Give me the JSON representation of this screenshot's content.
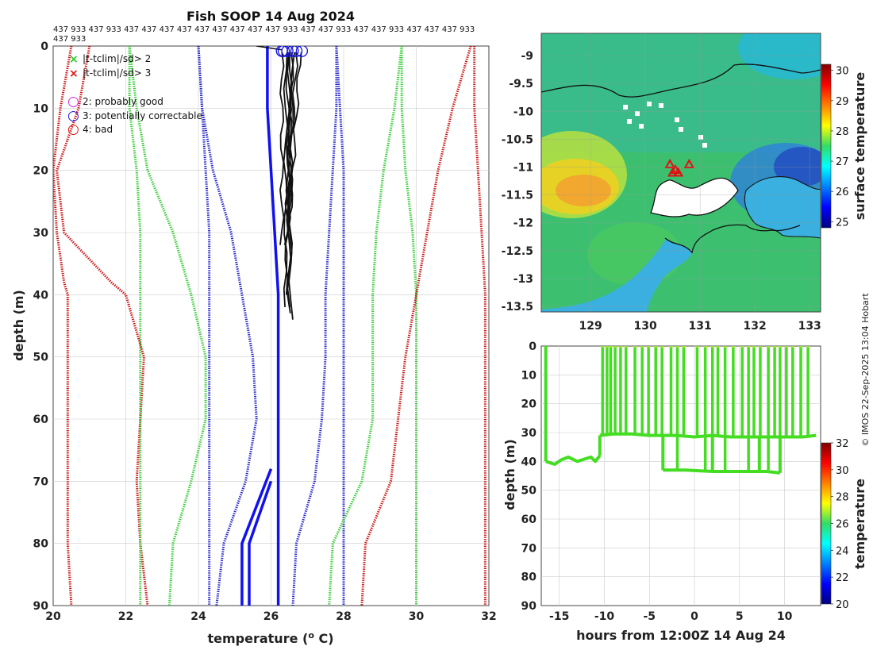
{
  "chart_data": [
    {
      "type": "line",
      "title": "Fish SOOP 14 Aug 2024",
      "xlabel_prefix": "temperature (",
      "xlabel_sup": "o",
      "xlabel_suffix": " C)",
      "ylabel": "depth (m)",
      "xlim": [
        20,
        32
      ],
      "ylim": [
        90,
        0
      ],
      "xticks": [
        "20",
        "22",
        "24",
        "26",
        "28",
        "30",
        "32"
      ],
      "yticks": [
        "0",
        "10",
        "20",
        "30",
        "40",
        "50",
        "60",
        "70",
        "80",
        "90"
      ],
      "platform_ids_line1": "437 933 437 933 437 437 437 437 437 437 437 437 437 933 437 437 933 437 437 933 437 437 437 933",
      "platform_ids_line2": "437 933",
      "legend": [
        {
          "symbol": "×",
          "color": "#22cc22",
          "label": "|t-tclim|/sd> 2"
        },
        {
          "symbol": "×",
          "color": "#dd1111",
          "label": "|t-tclim|/sd> 3"
        },
        {
          "symbol": "○",
          "color": "#dd22dd",
          "label": "2: probably good"
        },
        {
          "symbol": "○",
          "color": "#1111dd",
          "label": "3: potentially correctable"
        },
        {
          "symbol": "○",
          "color": "#dd1111",
          "label": "4: bad"
        }
      ],
      "series": [
        {
          "name": "clim-3sd-low-a",
          "color": "#cc1111",
          "style": "dotted",
          "points": [
            [
              21.0,
              0
            ],
            [
              20.7,
              10
            ],
            [
              20.1,
              20
            ],
            [
              20.3,
              30
            ],
            [
              21.6,
              38
            ],
            [
              22.0,
              40
            ],
            [
              22.5,
              50
            ],
            [
              22.4,
              60
            ],
            [
              22.3,
              70
            ],
            [
              22.4,
              80
            ],
            [
              22.6,
              90
            ]
          ]
        },
        {
          "name": "clim-3sd-low-b",
          "color": "#cc1111",
          "style": "dotted",
          "points": [
            [
              20.5,
              0
            ],
            [
              20.2,
              10
            ],
            [
              20.0,
              20
            ],
            [
              20.1,
              30
            ],
            [
              20.3,
              38
            ],
            [
              20.4,
              40
            ],
            [
              20.4,
              50
            ],
            [
              20.4,
              60
            ],
            [
              20.4,
              70
            ],
            [
              20.4,
              80
            ],
            [
              20.5,
              90
            ]
          ]
        },
        {
          "name": "clim-2sd-low-a",
          "color": "#33cc33",
          "style": "dotted",
          "points": [
            [
              22.1,
              0
            ],
            [
              22.3,
              10
            ],
            [
              22.6,
              20
            ],
            [
              23.3,
              30
            ],
            [
              23.8,
              40
            ],
            [
              24.2,
              50
            ],
            [
              24.2,
              60
            ],
            [
              23.8,
              70
            ],
            [
              23.3,
              80
            ],
            [
              23.2,
              90
            ]
          ]
        },
        {
          "name": "clim-2sd-low-b",
          "color": "#33cc33",
          "style": "dotted",
          "points": [
            [
              22.1,
              0
            ],
            [
              22.1,
              10
            ],
            [
              22.3,
              20
            ],
            [
              22.4,
              30
            ],
            [
              22.4,
              40
            ],
            [
              22.4,
              50
            ],
            [
              22.4,
              60
            ],
            [
              22.4,
              70
            ],
            [
              22.4,
              80
            ],
            [
              22.4,
              90
            ]
          ]
        },
        {
          "name": "clim-sd-low",
          "color": "#2222cc",
          "style": "dotted",
          "points": [
            [
              24.0,
              0
            ],
            [
              24.1,
              10
            ],
            [
              24.4,
              20
            ],
            [
              24.9,
              30
            ],
            [
              25.2,
              40
            ],
            [
              25.5,
              50
            ],
            [
              25.6,
              60
            ],
            [
              25.3,
              70
            ],
            [
              24.7,
              80
            ],
            [
              24.5,
              90
            ]
          ]
        },
        {
          "name": "clim-sd-low-b",
          "color": "#2222cc",
          "style": "dotted",
          "points": [
            [
              24.0,
              0
            ],
            [
              24.1,
              10
            ],
            [
              24.2,
              20
            ],
            [
              24.3,
              30
            ],
            [
              24.3,
              40
            ],
            [
              24.3,
              50
            ],
            [
              24.3,
              60
            ],
            [
              24.3,
              70
            ],
            [
              24.3,
              80
            ],
            [
              24.3,
              90
            ]
          ]
        },
        {
          "name": "clim-sd-high",
          "color": "#2222cc",
          "style": "dotted",
          "points": [
            [
              27.8,
              0
            ],
            [
              27.8,
              10
            ],
            [
              27.7,
              20
            ],
            [
              27.6,
              30
            ],
            [
              27.5,
              40
            ],
            [
              27.5,
              50
            ],
            [
              27.4,
              60
            ],
            [
              27.2,
              70
            ],
            [
              26.7,
              80
            ],
            [
              26.6,
              90
            ]
          ]
        },
        {
          "name": "clim-sd-high-b",
          "color": "#2222cc",
          "style": "dotted",
          "points": [
            [
              27.8,
              0
            ],
            [
              27.9,
              10
            ],
            [
              28.0,
              20
            ],
            [
              28.0,
              30
            ],
            [
              28.0,
              40
            ],
            [
              28.0,
              50
            ],
            [
              28.0,
              60
            ],
            [
              28.0,
              70
            ],
            [
              28.0,
              80
            ],
            [
              28.0,
              90
            ]
          ]
        },
        {
          "name": "clim-2sd-high-a",
          "color": "#33cc33",
          "style": "dotted",
          "points": [
            [
              29.6,
              0
            ],
            [
              29.4,
              10
            ],
            [
              29.1,
              20
            ],
            [
              28.9,
              30
            ],
            [
              28.8,
              40
            ],
            [
              28.8,
              50
            ],
            [
              28.8,
              60
            ],
            [
              28.5,
              70
            ],
            [
              27.7,
              80
            ],
            [
              27.6,
              90
            ]
          ]
        },
        {
          "name": "clim-2sd-high-b",
          "color": "#33cc33",
          "style": "dotted",
          "points": [
            [
              29.6,
              0
            ],
            [
              29.6,
              10
            ],
            [
              29.7,
              20
            ],
            [
              29.9,
              30
            ],
            [
              30.0,
              40
            ],
            [
              30.0,
              50
            ],
            [
              30.0,
              60
            ],
            [
              30.0,
              70
            ],
            [
              30.0,
              80
            ],
            [
              30.0,
              90
            ]
          ]
        },
        {
          "name": "clim-3sd-high-a",
          "color": "#cc1111",
          "style": "dotted",
          "points": [
            [
              31.5,
              0
            ],
            [
              31.0,
              10
            ],
            [
              30.6,
              20
            ],
            [
              30.3,
              30
            ],
            [
              30.0,
              40
            ],
            [
              29.7,
              50
            ],
            [
              29.5,
              60
            ],
            [
              29.3,
              70
            ],
            [
              28.6,
              80
            ],
            [
              28.5,
              90
            ]
          ]
        },
        {
          "name": "clim-3sd-high-b",
          "color": "#cc1111",
          "style": "dotted",
          "points": [
            [
              31.6,
              0
            ],
            [
              31.6,
              10
            ],
            [
              31.7,
              20
            ],
            [
              31.8,
              30
            ],
            [
              31.9,
              40
            ],
            [
              31.9,
              50
            ],
            [
              31.9,
              60
            ],
            [
              31.9,
              70
            ],
            [
              31.9,
              80
            ],
            [
              31.9,
              90
            ]
          ]
        },
        {
          "name": "clim-mean",
          "color": "#1111ee",
          "style": "solid",
          "points": [
            [
              25.9,
              0
            ],
            [
              25.9,
              5
            ],
            [
              25.9,
              10
            ],
            [
              26.0,
              20
            ],
            [
              26.1,
              30
            ],
            [
              26.2,
              40
            ],
            [
              26.2,
              50
            ],
            [
              26.2,
              60
            ],
            [
              26.2,
              70
            ],
            [
              26.2,
              80
            ],
            [
              26.2,
              90
            ]
          ]
        },
        {
          "name": "clim-mean-lower",
          "color": "#1111ee",
          "style": "solid",
          "points": [
            [
              26.0,
              70
            ],
            [
              25.4,
              80
            ],
            [
              25.4,
              90
            ]
          ]
        },
        {
          "name": "clim-mean-lower-b",
          "color": "#1111ee",
          "style": "solid",
          "points": [
            [
              26.0,
              68
            ],
            [
              25.2,
              80
            ],
            [
              25.2,
              90
            ]
          ]
        }
      ],
      "profiles": [
        {
          "start": 26.3,
          "end": 26.3,
          "max_depth": 32
        },
        {
          "start": 26.4,
          "end": 26.4,
          "max_depth": 42
        },
        {
          "start": 26.45,
          "end": 26.5,
          "max_depth": 43
        },
        {
          "start": 26.5,
          "end": 26.55,
          "max_depth": 44
        },
        {
          "start": 26.55,
          "end": 26.4,
          "max_depth": 40
        },
        {
          "start": 26.6,
          "end": 26.4,
          "max_depth": 32
        },
        {
          "start": 26.7,
          "end": 26.45,
          "max_depth": 32
        },
        {
          "start": 26.8,
          "end": 26.5,
          "max_depth": 30
        },
        {
          "start": 26.6,
          "end": 26.5,
          "max_depth": 42
        }
      ],
      "qc_markers_temperature": [
        26.3,
        26.35,
        26.45,
        26.6,
        26.7,
        26.85
      ]
    },
    {
      "type": "heatmap",
      "name": "surface temperature map",
      "xticks": [
        "129",
        "130",
        "131",
        "132",
        "133"
      ],
      "yticks": [
        "-9",
        "-9.5",
        "-10",
        "-10.5",
        "-11",
        "-11.5",
        "-12",
        "-12.5",
        "-13",
        "-13.5"
      ],
      "xlim": [
        128.1,
        133.2
      ],
      "ylim": [
        -13.6,
        -8.6
      ],
      "colorbar_label": "surface temperature",
      "colorbar_ticks": [
        "30",
        "29",
        "28",
        "27",
        "26",
        "25"
      ],
      "colorbar_range": [
        24.8,
        30.2
      ],
      "triangle_markers": [
        [
          130.45,
          -10.95
        ],
        [
          130.55,
          -11.05
        ],
        [
          130.6,
          -11.1
        ],
        [
          130.8,
          -10.95
        ],
        [
          130.5,
          -11.1
        ]
      ]
    },
    {
      "type": "scatter",
      "name": "depth vs time",
      "xlabel": "hours from 12:00Z 14 Aug 24",
      "ylabel": "depth (m)",
      "xlim": [
        -17,
        14
      ],
      "ylim": [
        90,
        0
      ],
      "xticks": [
        "-15",
        "-10",
        "-5",
        "0",
        "5",
        "10"
      ],
      "yticks": [
        "0",
        "10",
        "20",
        "30",
        "40",
        "50",
        "60",
        "70",
        "80",
        "90"
      ],
      "colorbar_label": "temperature",
      "colorbar_ticks": [
        "32",
        "30",
        "28",
        "26",
        "24",
        "22",
        "20"
      ],
      "colorbar_range": [
        20,
        32
      ],
      "segments": [
        {
          "x": [
            -16.5,
            -16.5
          ],
          "y": [
            0,
            40
          ]
        },
        {
          "x": [
            -16.5,
            -15.5,
            -14.8,
            -14.0,
            -13.0,
            -12.5,
            -11.5,
            -11.0,
            -10.5
          ],
          "y": [
            40,
            41,
            39.5,
            38.5,
            40,
            39.5,
            38.5,
            40,
            38
          ]
        },
        {
          "x": [
            -10.5,
            -10.5
          ],
          "y": [
            38,
            31
          ]
        },
        {
          "x": [
            -10.5,
            -9.0,
            -7.0,
            -5.0,
            -3.5,
            -2.0,
            0.0,
            2.0,
            4.0,
            6.0,
            8.0,
            10.0,
            12.0,
            13.5
          ],
          "y": [
            31,
            30.5,
            30.5,
            31,
            31,
            31,
            31.5,
            31,
            31.5,
            31.5,
            31.5,
            31.5,
            31.5,
            31
          ]
        },
        {
          "x": [
            -3.5,
            -3.5
          ],
          "y": [
            31,
            43
          ]
        },
        {
          "x": [
            -3.5,
            -1.0,
            2.0,
            5.0,
            8.0,
            9.5
          ],
          "y": [
            43,
            43,
            43.5,
            43.5,
            43.5,
            44
          ]
        },
        {
          "x": [
            2.0,
            2.0
          ],
          "y": [
            31,
            43.5
          ]
        },
        {
          "x": [
            7.2,
            7.2
          ],
          "y": [
            31.5,
            43.5
          ]
        },
        {
          "x": [
            9.5,
            9.5
          ],
          "y": [
            44,
            32
          ]
        }
      ],
      "casts": [
        -10.2,
        -9.7,
        -9.3,
        -8.8,
        -8.2,
        -7.6,
        -6.6,
        -5.8,
        -5.1,
        -4.3,
        -3.6,
        -2.6,
        -1.9,
        -1.2,
        0.3,
        1.2,
        2.0,
        2.6,
        3.4,
        4.3,
        5.3,
        6.0,
        6.6,
        7.3,
        8.2,
        8.9,
        9.5,
        10.2,
        10.9,
        11.8,
        12.6
      ]
    }
  ],
  "watermark": "© IMOS 22-Sep-2025 13:04 Hobart"
}
